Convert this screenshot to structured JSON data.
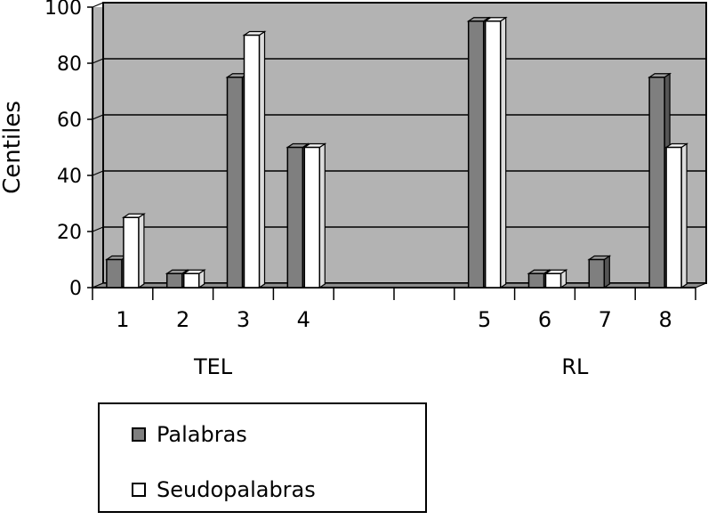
{
  "chart_data": {
    "type": "bar",
    "title": "",
    "xlabel": "",
    "ylabel": "Centiles",
    "ylim": [
      0,
      100
    ],
    "yticks": [
      0,
      20,
      40,
      60,
      80,
      100
    ],
    "grid": true,
    "legend_position": "bottom-left",
    "categories": [
      "1",
      "2",
      "3",
      "4",
      "",
      "",
      "5",
      "6",
      "7",
      "8"
    ],
    "group_labels": [
      "TEL",
      "RL"
    ],
    "series": [
      {
        "name": "Palabras",
        "color": "#7f7f7f",
        "values": [
          10,
          5,
          75,
          50,
          null,
          null,
          95,
          5,
          10,
          75
        ]
      },
      {
        "name": "Seudopalabras",
        "color": "#ffffff",
        "values": [
          25,
          5,
          90,
          50,
          null,
          null,
          95,
          5,
          0,
          50
        ]
      }
    ],
    "colors": {
      "plot_background": "#b3b3b3",
      "floor": "#8c8c8c"
    }
  }
}
